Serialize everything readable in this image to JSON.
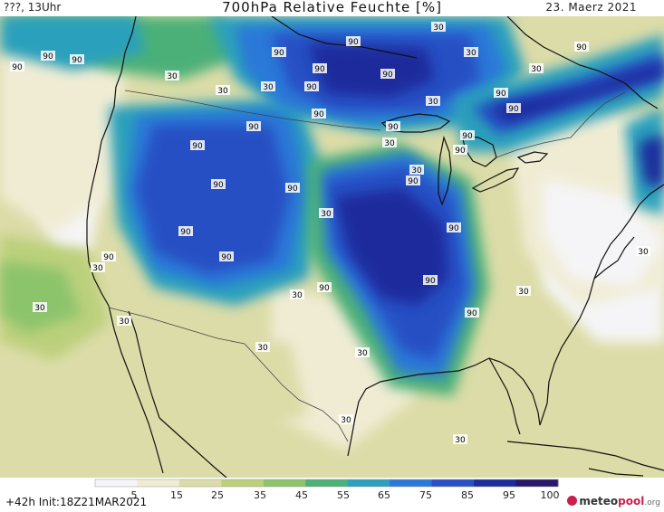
{
  "header": {
    "left_label": "???, 13Uhr",
    "title": "700hPa Relative Feuchte [%]",
    "date": "23. Maerz 2021"
  },
  "footer": {
    "init_label": "+42h  Init:18Z21MAR2021",
    "brand_main": "meteo",
    "brand_accent": "pool",
    "brand_suffix": ".org"
  },
  "colorbar": {
    "ticks": [
      "5",
      "15",
      "25",
      "35",
      "45",
      "55",
      "65",
      "75",
      "85",
      "95",
      "100"
    ],
    "colors": [
      "#f5f5f7",
      "#f0ecd4",
      "#dcdca8",
      "#bcd07c",
      "#8cc46c",
      "#4cb078",
      "#2ca0bc",
      "#2c78d8",
      "#2850c4",
      "#1c2c9c",
      "#281868"
    ]
  },
  "contour_labels": [
    "90",
    "90",
    "90",
    "90",
    "90",
    "90",
    "90",
    "90",
    "90",
    "90",
    "90",
    "90",
    "90",
    "90",
    "90",
    "90",
    "90",
    "90",
    "90",
    "90",
    "90",
    "90",
    "90",
    "90",
    "90",
    "90",
    "90",
    "30",
    "30",
    "30",
    "30",
    "30",
    "30",
    "30",
    "30",
    "30",
    "30",
    "30",
    "30",
    "30",
    "30",
    "30",
    "30",
    "30",
    "30",
    "30",
    "30"
  ]
}
